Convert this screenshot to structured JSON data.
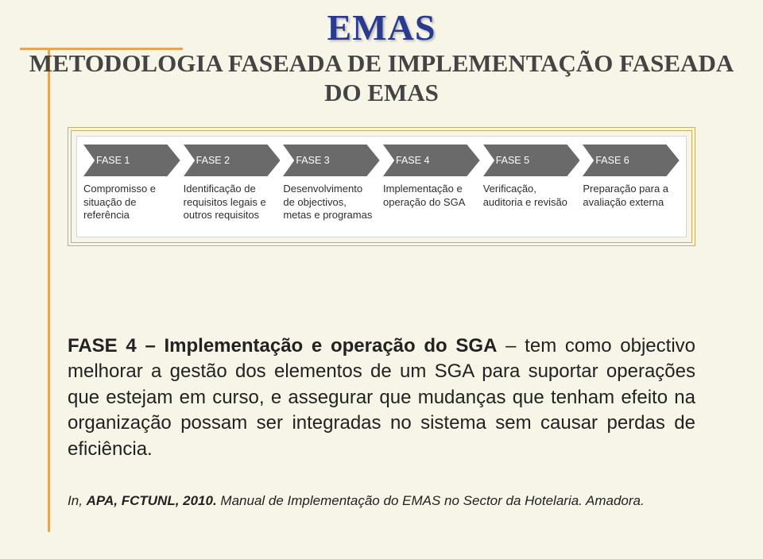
{
  "header": {
    "emas": "EMAS",
    "subtitle_line1": "METODOLOGIA FASEADA DE IMPLEMENTAÇÃO FASEADA",
    "subtitle_line2": "DO EMAS"
  },
  "diagram": {
    "arrow_fill": "#6a6a6a",
    "phases": [
      {
        "label": "FASE 1",
        "caption": "Compromisso e situação de referência"
      },
      {
        "label": "FASE 2",
        "caption": "Identificação de requisitos legais e outros requisitos"
      },
      {
        "label": "FASE 3",
        "caption": "Desenvolvimento de objectivos, metas e programas"
      },
      {
        "label": "FASE 4",
        "caption": "Implementação e operação do SGA"
      },
      {
        "label": "FASE 5",
        "caption": "Verificação, auditoria e revisão"
      },
      {
        "label": "FASE 6",
        "caption": "Preparação para a avaliação externa"
      }
    ]
  },
  "body": {
    "phase_label": "FASE 4 – Implementação e operação do SGA",
    "rest": " – tem como objectivo melhorar a gestão dos elementos de um SGA para suportar operações que estejam em curso, e assegurar que mudanças que tenham efeito na organização possam ser integradas no sistema sem causar perdas de eficiência."
  },
  "citation": {
    "prefix": "In",
    "authors": "APA, FCTUNL, 2010.",
    "rest": " Manual de Implementação do EMAS no Sector da Hotelaria. Amadora."
  }
}
